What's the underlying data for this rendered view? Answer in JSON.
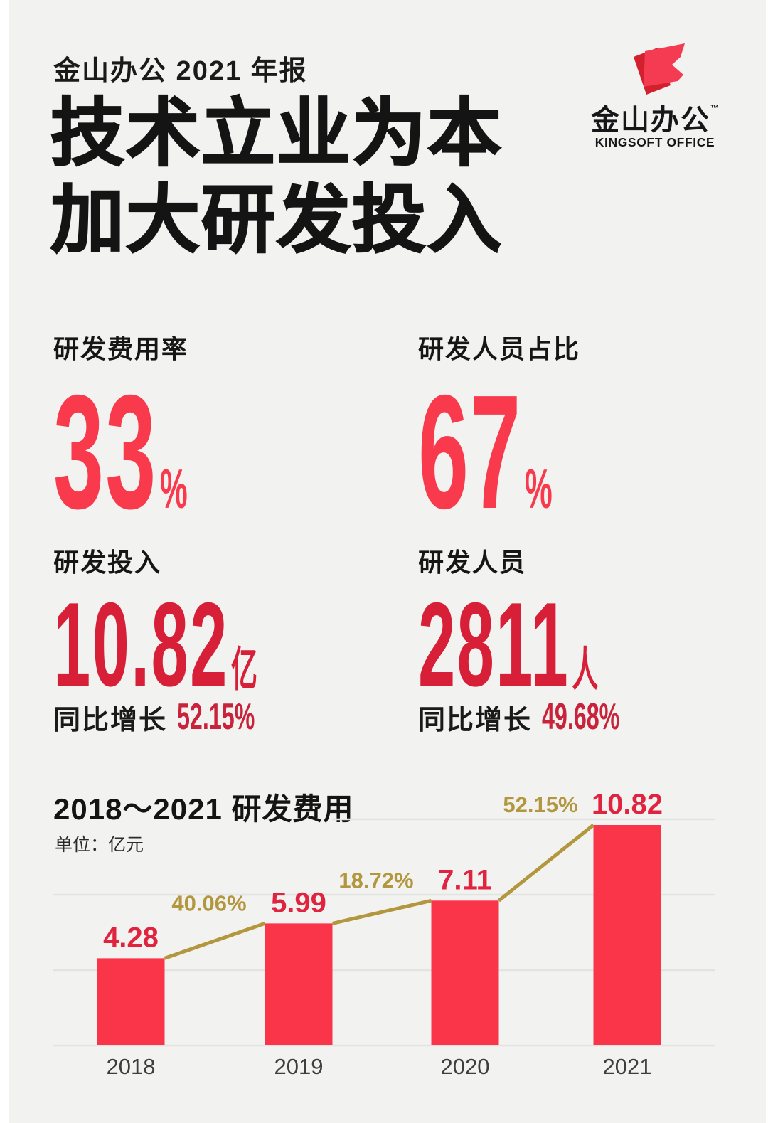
{
  "header": {
    "report_label": "金山办公 2021 年报"
  },
  "logo": {
    "name_cn": "金山办公",
    "trademark": "™",
    "name_en": "KINGSOFT OFFICE",
    "color_dark": "#D2202F",
    "color_bright": "#F43B52"
  },
  "title": {
    "line1": "技术立业为本",
    "line2": "加大研发投入"
  },
  "stats": [
    {
      "label": "研发费用率",
      "value": "33",
      "unit": "%"
    },
    {
      "label": "研发人员占比",
      "value": "67",
      "unit": "%"
    },
    {
      "label": "研发投入",
      "value": "10.82",
      "unit": "亿",
      "growth_label": "同比增长",
      "growth_value": "52.15%"
    },
    {
      "label": "研发人员",
      "value": "2811",
      "unit": "人",
      "growth_label": "同比增长",
      "growth_value": "49.68%"
    }
  ],
  "chart": {
    "title": "2018～2021 研发费用",
    "unit_label": "单位：亿元"
  },
  "chart_data": {
    "type": "bar",
    "title": "2018～2021 研发费用",
    "ylabel": "亿元",
    "categories": [
      "2018",
      "2019",
      "2020",
      "2021"
    ],
    "values": [
      4.28,
      5.99,
      7.11,
      10.82
    ],
    "value_labels": [
      "4.28",
      "5.99",
      "7.11",
      "10.82"
    ],
    "growth_line": {
      "labels": [
        "40.06%",
        "18.72%",
        "52.15%"
      ],
      "values": [
        40.06,
        18.72,
        52.15
      ]
    },
    "ylim": [
      0,
      11.7
    ],
    "grid": true,
    "legend": "none",
    "bar_color": "#FA3449",
    "value_label_color": "#E02440",
    "line_color": "#B3973F",
    "growth_label_color": "#B3973F",
    "axis_label_color": "#3E3E3E",
    "grid_color": "#E3E3E1"
  }
}
